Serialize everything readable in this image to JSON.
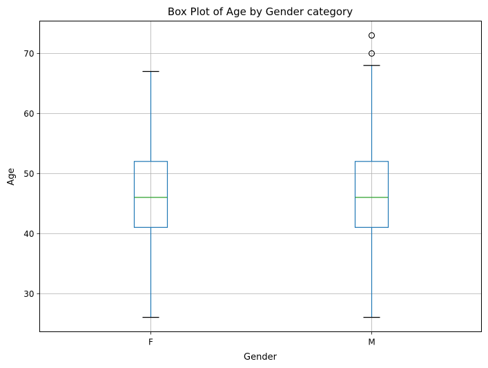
{
  "chart_data": {
    "type": "box",
    "title": "Box Plot of Age by Gender category",
    "xlabel": "Gender",
    "ylabel": "Age",
    "ylim": [
      23.6,
      75.4
    ],
    "yticks": [
      30,
      40,
      50,
      60,
      70
    ],
    "grid": true,
    "categories": [
      "F",
      "M"
    ],
    "boxes": [
      {
        "category": "F",
        "whisker_low": 26,
        "q1": 41,
        "median": 46,
        "q3": 52,
        "whisker_high": 67,
        "outliers": []
      },
      {
        "category": "M",
        "whisker_low": 26,
        "q1": 41,
        "median": 46,
        "q3": 52,
        "whisker_high": 68,
        "outliers": [
          70,
          73
        ]
      }
    ],
    "colors": {
      "box": "#1f77b4",
      "median": "#2ca02c",
      "caps": "#000000",
      "grid": "#b0b0b0"
    }
  }
}
